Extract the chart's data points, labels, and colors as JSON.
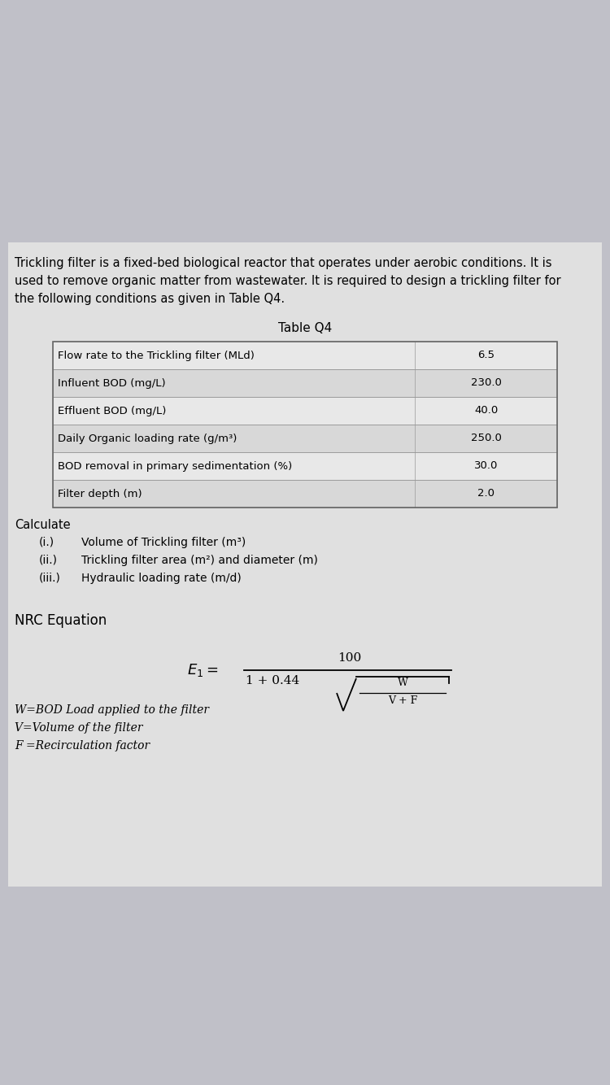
{
  "bg_color": "#c0c0c8",
  "card_bg": "#e0e0e0",
  "intro_text_line1": "Trickling filter is a fixed-bed biological reactor that operates under aerobic conditions. It is",
  "intro_text_line2": "used to remove organic matter from wastewater. It is required to design a trickling filter for",
  "intro_text_line3": "the following conditions as given in Table Q4.",
  "table_title": "Table Q4",
  "table_rows": [
    [
      "Flow rate to the Trickling filter (MLd)",
      "6.5"
    ],
    [
      "Influent BOD (mg/L)",
      "230.0"
    ],
    [
      "Effluent BOD (mg/L)",
      "40.0"
    ],
    [
      "Daily Organic loading rate (g/m³)",
      "250.0"
    ],
    [
      "BOD removal in primary sedimentation (%)",
      "30.0"
    ],
    [
      "Filter depth (m)",
      "2.0"
    ]
  ],
  "row_colors": [
    "#e8e8e8",
    "#d8d8d8"
  ],
  "calculate_label": "Calculate",
  "calc_items": [
    [
      "(i.)",
      "Volume of Trickling filter (m³)"
    ],
    [
      "(ii.)",
      "Trickling filter area (m²) and diameter (m)"
    ],
    [
      "(iii.)",
      "Hydraulic loading rate (m/d)"
    ]
  ],
  "nrc_label": "NRC Equation",
  "legend_lines": [
    "W=BOD Load applied to the filter",
    "V=Volume of the filter",
    "F =Recirculation factor"
  ]
}
